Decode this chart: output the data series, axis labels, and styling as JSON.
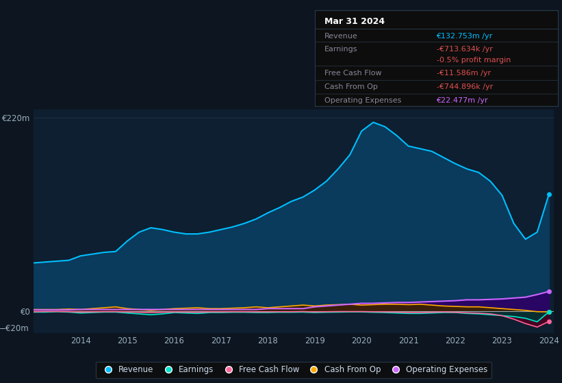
{
  "bg_color": "#0d1520",
  "plot_bg_color": "#0d1f30",
  "title": "Mar 31 2024",
  "tooltip": {
    "Revenue": "€132.753m /yr",
    "Revenue_color": "#00bfff",
    "Earnings": "-€713.634k /yr",
    "Earnings_color": "#e05050",
    "profit_margin": "-0.5% profit margin",
    "profit_margin_color": "#e05050",
    "Free_Cash_Flow": "-€11.586m /yr",
    "Free_Cash_Flow_color": "#e05050",
    "Cash_From_Op": "-€744.896k /yr",
    "Cash_From_Op_color": "#e05050",
    "Operating_Expenses": "€22.477m /yr",
    "Operating_Expenses_color": "#cc66ff"
  },
  "years": [
    2013.0,
    2013.25,
    2013.5,
    2013.75,
    2014.0,
    2014.25,
    2014.5,
    2014.75,
    2015.0,
    2015.25,
    2015.5,
    2015.75,
    2016.0,
    2016.25,
    2016.5,
    2016.75,
    2017.0,
    2017.25,
    2017.5,
    2017.75,
    2018.0,
    2018.25,
    2018.5,
    2018.75,
    2019.0,
    2019.25,
    2019.5,
    2019.75,
    2020.0,
    2020.25,
    2020.5,
    2020.75,
    2021.0,
    2021.25,
    2021.5,
    2021.75,
    2022.0,
    2022.25,
    2022.5,
    2022.75,
    2023.0,
    2023.25,
    2023.5,
    2023.75,
    2024.0
  ],
  "revenue": [
    55,
    56,
    57,
    58,
    63,
    65,
    67,
    68,
    80,
    90,
    95,
    93,
    90,
    88,
    88,
    90,
    93,
    96,
    100,
    105,
    112,
    118,
    125,
    130,
    138,
    148,
    162,
    178,
    205,
    215,
    210,
    200,
    188,
    185,
    182,
    175,
    168,
    162,
    158,
    148,
    132,
    100,
    82,
    90,
    133
  ],
  "earnings": [
    -1,
    -1,
    -0.5,
    -1,
    -2,
    -1.5,
    -1,
    -1,
    -2,
    -3,
    -4,
    -3,
    -1.5,
    -2,
    -2.5,
    -1.5,
    -1.5,
    -1.2,
    -1.2,
    -1.5,
    -1.5,
    -1.2,
    -1.2,
    -1,
    -1.5,
    -1.2,
    -1,
    -0.8,
    -0.8,
    -1.2,
    -1.5,
    -2,
    -2.5,
    -2.5,
    -2,
    -1.5,
    -1.5,
    -2.5,
    -3,
    -4,
    -5,
    -6,
    -8,
    -12,
    -0.7
  ],
  "free_cash_flow": [
    -0.5,
    -0.3,
    -0.3,
    -0.5,
    -1,
    -0.8,
    -0.5,
    -0.5,
    -0.8,
    -1.2,
    -1.5,
    -1.2,
    -0.8,
    -1,
    -1.2,
    -0.8,
    -0.8,
    -0.6,
    -0.6,
    -0.8,
    -0.8,
    -0.6,
    -0.6,
    -0.4,
    -0.8,
    -0.6,
    -0.4,
    -0.4,
    -0.4,
    -0.6,
    -0.8,
    -1,
    -1.5,
    -1.5,
    -1.2,
    -0.8,
    -1.2,
    -1.8,
    -2.2,
    -3,
    -5,
    -9,
    -14,
    -18,
    -11.6
  ],
  "cash_from_op": [
    2,
    2,
    2,
    2.5,
    2,
    3,
    4,
    5,
    3,
    2,
    1,
    2,
    3,
    3.5,
    4,
    3,
    3,
    3.5,
    4,
    5,
    4,
    5,
    6,
    7,
    6,
    7,
    7.5,
    8,
    7,
    7.5,
    8,
    8,
    7.5,
    8,
    7,
    6,
    5.5,
    5,
    5,
    4,
    3,
    2,
    1,
    -0.5,
    -0.7
  ],
  "operating_expenses": [
    1.5,
    1.5,
    1.5,
    1.5,
    2,
    2,
    2,
    2,
    2,
    2,
    2,
    2,
    2,
    2,
    2,
    2,
    2,
    2,
    2,
    2,
    3,
    3,
    3,
    3,
    5,
    6,
    7,
    8,
    9,
    9,
    9.5,
    10,
    10,
    10.5,
    11,
    11.5,
    12,
    13,
    13,
    13.5,
    14,
    15,
    16,
    19,
    22.5
  ],
  "revenue_color": "#00bfff",
  "revenue_fill": "#0a3a5c",
  "earnings_color": "#00e5cc",
  "earnings_fill": "#003333",
  "free_cash_flow_color": "#ff6699",
  "free_cash_flow_fill": "#4d0022",
  "cash_from_op_color": "#ffaa00",
  "cash_from_op_fill": "#3d2200",
  "operating_expenses_color": "#cc66ff",
  "operating_expenses_fill": "#2d0066",
  "ylim_min": -25,
  "ylim_max": 230,
  "xtick_positions": [
    2014,
    2015,
    2016,
    2017,
    2018,
    2019,
    2020,
    2021,
    2022,
    2023,
    2024
  ],
  "xtick_labels": [
    "2014",
    "2015",
    "2016",
    "2017",
    "2018",
    "2019",
    "2020",
    "2021",
    "2022",
    "2023",
    "2024"
  ],
  "legend_items": [
    {
      "label": "Revenue",
      "color": "#00bfff"
    },
    {
      "label": "Earnings",
      "color": "#00e5cc"
    },
    {
      "label": "Free Cash Flow",
      "color": "#ff6699"
    },
    {
      "label": "Cash From Op",
      "color": "#ffaa00"
    },
    {
      "label": "Operating Expenses",
      "color": "#cc66ff"
    }
  ]
}
